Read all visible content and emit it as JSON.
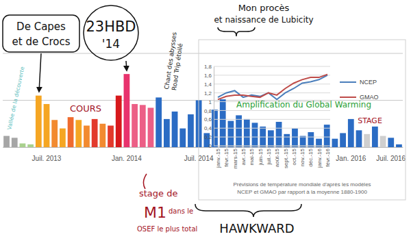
{
  "chart_data": [
    {
      "type": "bar",
      "categories": [
        null,
        null,
        null,
        null,
        null,
        "Juil. 2013",
        null,
        null,
        null,
        null,
        null,
        null,
        null,
        null,
        null,
        "Jan. 2014",
        null,
        null,
        null,
        null,
        null,
        null,
        null,
        null,
        "Juil. 2014",
        null,
        null,
        null,
        null,
        null,
        null,
        null,
        null,
        null,
        null,
        null,
        null,
        null,
        null,
        null,
        null,
        null,
        null,
        "Jan. 2016",
        null,
        null,
        null,
        null,
        "Juil. 2016",
        null
      ],
      "values": [
        12,
        10,
        4,
        3,
        55,
        46,
        29,
        20,
        32,
        29,
        23,
        30,
        25,
        23,
        55,
        78,
        46,
        45,
        42,
        53,
        30,
        38,
        20,
        35,
        50,
        15,
        40,
        51,
        28,
        34,
        30,
        26,
        22,
        18,
        27,
        14,
        20,
        12,
        16,
        9,
        24,
        9,
        15,
        30,
        18,
        14,
        22,
        12,
        10,
        3
      ],
      "colors": [
        "#a6a6a6",
        "#a6a6a6",
        "#a9d18e",
        "#a9d18e",
        "#f5a623",
        "#f5a623",
        "#f28a30",
        "#f5a623",
        "#ef6b2e",
        "#f5a623",
        "#f28a30",
        "#e23a2c",
        "#f28a30",
        "#e23a2c",
        "#d7191c",
        "#e8336d",
        "#ec5f86",
        "#ec5f86",
        "#ec5f86",
        "#2b6cc4",
        "#2b6cc4",
        "#2b6cc4",
        "#2b6cc4",
        "#2b6cc4",
        "#2b6cc4",
        "#2b6cc4",
        "#2b6cc4",
        "#2b6cc4",
        "#2b6cc4",
        "#2b6cc4",
        "#2b6cc4",
        "#2b6cc4",
        "#2b6cc4",
        "#2b6cc4",
        "#2b6cc4",
        "#2b6cc4",
        "#2b6cc4",
        "#2b6cc4",
        "#2b6cc4",
        "#2b6cc4",
        "#2b6cc4",
        "#2b6cc4",
        "#2b6cc4",
        "#2b6cc4",
        "#2b6cc4",
        "#cfcfcf",
        "#2b6cc4",
        "#cfcfcf",
        "#2b6cc4",
        "#2b6cc4"
      ],
      "ylim": [
        0,
        100
      ],
      "yticks": [
        0,
        50,
        100
      ],
      "grid": true,
      "tick_labels": "x",
      "annotations": [
        [
          "De Capes",
          "et de Crocs"
        ],
        [
          "23HBD",
          "'14"
        ],
        [
          "Chant des abysses",
          "Road Trip étoilé"
        ],
        [
          "Mon procès",
          "et naissance de Lubicity"
        ],
        [
          "Vallée de la découverte"
        ],
        [
          "COURS"
        ],
        [
          "stage de",
          "M1",
          "dans le",
          "OSEF le plus total"
        ],
        [
          "Amplification du Global Warming"
        ],
        [
          "STAGE"
        ],
        [
          "HAWKWARD"
        ]
      ]
    },
    {
      "type": "line",
      "title": [
        "Prévisions de température mondiale d'après les modèles",
        "NCEP et GMAO par rapport à la moyenne 1880-1900"
      ],
      "categories": [
        "janv.-15",
        "févr.-15",
        "mars-15",
        "avr.-15",
        "mai-15",
        "juin-15",
        "juil.-15",
        "août-15",
        "sept.-15",
        "oct.-15",
        "nov.-15",
        "déc.-15",
        "janv.-16",
        "févr.-16"
      ],
      "series": [
        {
          "name": "NCEP",
          "color": "#4a7ebb",
          "values": [
            1.1,
            1.2,
            1.25,
            1.1,
            1.15,
            1.12,
            1.2,
            1.05,
            1.2,
            1.3,
            1.42,
            1.45,
            1.5,
            1.6
          ]
        },
        {
          "name": "GMAO",
          "color": "#be4b48",
          "values": [
            1.05,
            1.12,
            1.15,
            1.15,
            1.12,
            1.1,
            1.2,
            1.15,
            1.3,
            1.42,
            1.5,
            1.55,
            1.55,
            1.62
          ]
        }
      ],
      "ylim": [
        0,
        1.8
      ],
      "yticks": [
        0,
        {
          "value": 0.2,
          "label": "0,2"
        },
        {
          "value": 0.4,
          "label": "0,4"
        },
        {
          "value": 0.6,
          "label": "0,6"
        },
        {
          "value": 0.8,
          "label": "0,8"
        },
        1,
        {
          "value": 1.2,
          "label": "1,2"
        },
        {
          "value": 1.4,
          "label": "1,4"
        },
        {
          "value": 1.6,
          "label": "1,6"
        },
        {
          "value": 1.8,
          "label": "1,8"
        }
      ],
      "grid": true,
      "legend": "right"
    }
  ]
}
